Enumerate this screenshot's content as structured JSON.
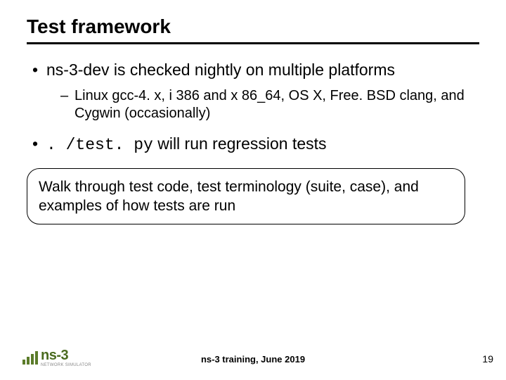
{
  "title": "Test framework",
  "bullets": {
    "b1": "ns-3-dev is checked nightly on multiple platforms",
    "b1_sub": "Linux gcc-4. x, i 386 and x 86_64, OS X, Free. BSD clang, and Cygwin (occasionally)",
    "b2_code": ". /test. py",
    "b2_rest": " will run regression tests"
  },
  "callout": "Walk through test code, test terminology (suite, case), and examples of how tests are run",
  "footer": {
    "logo_text": "ns-3",
    "logo_sub": "NETWORK SIMULATOR",
    "center": "ns-3 training, June 2019",
    "page": "19"
  },
  "colors": {
    "accent": "#4a6b1f",
    "text": "#000000",
    "bg": "#ffffff"
  }
}
